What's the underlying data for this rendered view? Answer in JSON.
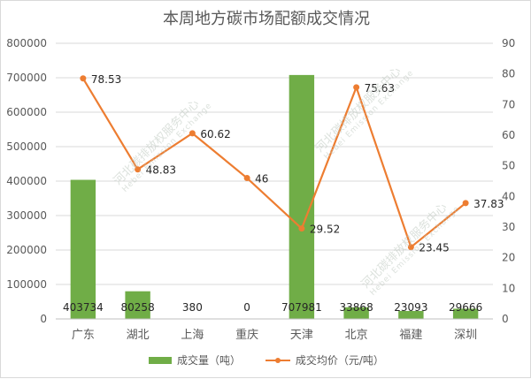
{
  "chart_data": {
    "type": "bar",
    "title": "本周地方碳市场配额成交情况",
    "categories": [
      "广东",
      "湖北",
      "上海",
      "重庆",
      "天津",
      "北京",
      "福建",
      "深圳"
    ],
    "series": [
      {
        "name": "成交量（吨）",
        "type": "bar",
        "axis": "left",
        "color": "#70ad47",
        "values": [
          403734,
          80258,
          380,
          0,
          707981,
          33868,
          23093,
          29666
        ],
        "value_labels": [
          "403734",
          "80258",
          "380",
          "0",
          "707981",
          "33868",
          "23093",
          "29666"
        ]
      },
      {
        "name": "成交均价（元/吨）",
        "type": "line",
        "axis": "right",
        "color": "#ed7d31",
        "values": [
          78.53,
          48.83,
          60.62,
          46,
          29.52,
          75.63,
          23.45,
          37.83
        ],
        "value_labels": [
          "78.53",
          "48.83",
          "60.62",
          "46",
          "29.52",
          "75.63",
          "23.45",
          "37.83"
        ]
      }
    ],
    "y_left": {
      "min": 0,
      "max": 800000,
      "ticks": [
        "0",
        "100000",
        "200000",
        "300000",
        "400000",
        "500000",
        "600000",
        "700000",
        "800000"
      ]
    },
    "y_right": {
      "min": 0,
      "max": 90,
      "ticks": [
        "0",
        "10",
        "20",
        "30",
        "40",
        "50",
        "60",
        "70",
        "80",
        "90"
      ]
    },
    "grid": true,
    "legend_position": "bottom",
    "watermarks": [
      {
        "main": "河北碳排放权服务中心",
        "sub": "Hebei Emission Exchange"
      },
      {
        "main": "河北碳排放权服务中心",
        "sub": "Hebei Emission Exchange"
      },
      {
        "main": "河北碳排放权服务中心",
        "sub": "Hebei Emission Exchange"
      }
    ]
  }
}
